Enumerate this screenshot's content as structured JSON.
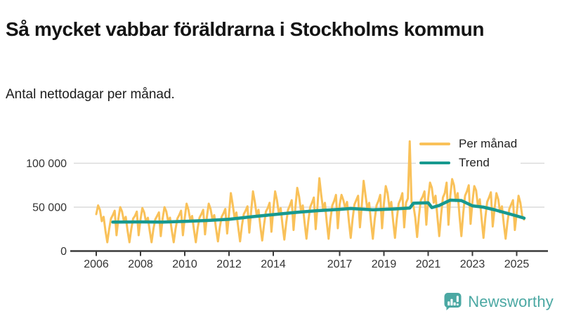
{
  "header": {
    "title": "Så mycket vabbar föräldrarna i Stockholms kommun",
    "subtitle": "Antal nettodagar per månad."
  },
  "legend": {
    "items": [
      {
        "label": "Per månad",
        "color": "#F9C159"
      },
      {
        "label": "Trend",
        "color": "#17998F"
      }
    ]
  },
  "footer": {
    "brand": "Newsworthy",
    "brand_color": "#4BA8A3",
    "logo_icon": "bar-chart-speech-bubble-icon"
  },
  "colors": {
    "per_month": "#F9C159",
    "trend": "#17998F",
    "grid": "#DCDCDC",
    "axis": "#3A3A3A",
    "tick_text": "#333333",
    "brand": "#4BA8A3"
  },
  "chart_data": {
    "type": "line",
    "title": "Så mycket vabbar föräldrarna i Stockholms kommun",
    "subtitle": "Antal nettodagar per månad.",
    "ylabel": "Antal nettodagar",
    "x_unit": "month",
    "x_start": "2006-01",
    "x_end": "2025-05",
    "x_ticks": [
      2006,
      2008,
      2010,
      2012,
      2014,
      2017,
      2019,
      2021,
      2023,
      2025
    ],
    "y_ticks": [
      {
        "value": 0,
        "label": "0"
      },
      {
        "value": 50000,
        "label": "50 000"
      },
      {
        "value": 100000,
        "label": "100 000"
      }
    ],
    "ylim": [
      0,
      130000
    ],
    "grid": "horizontal",
    "legend_position": "top-right",
    "series": [
      {
        "name": "Per månad",
        "color": "#F9C159",
        "kind": "monthly-values",
        "values": [
          42000,
          52000,
          47000,
          34000,
          39000,
          23000,
          10000,
          25000,
          37000,
          41000,
          46000,
          18000,
          37000,
          50000,
          45000,
          34000,
          39000,
          23000,
          10000,
          25000,
          37000,
          40000,
          45000,
          18000,
          36000,
          49000,
          44000,
          33000,
          38000,
          23000,
          10000,
          25000,
          36000,
          40000,
          44000,
          17000,
          37000,
          50000,
          45000,
          34000,
          38000,
          23000,
          10000,
          25000,
          37000,
          41000,
          46000,
          18000,
          38000,
          54000,
          47000,
          35000,
          40000,
          24000,
          10000,
          26000,
          38000,
          42000,
          47000,
          19000,
          39000,
          54000,
          48000,
          36000,
          41000,
          25000,
          11000,
          27000,
          39000,
          43000,
          48000,
          20000,
          42000,
          66000,
          53000,
          38000,
          44000,
          27000,
          11000,
          29000,
          42000,
          46000,
          51000,
          21000,
          45000,
          68000,
          56000,
          41000,
          47000,
          28000,
          12000,
          30000,
          45000,
          49000,
          55000,
          22000,
          47000,
          68000,
          58000,
          43000,
          49000,
          30000,
          13000,
          32000,
          47000,
          52000,
          58000,
          24000,
          50000,
          72000,
          62000,
          46000,
          52000,
          32000,
          14000,
          34000,
          50000,
          55000,
          61000,
          25000,
          52000,
          83000,
          64000,
          48000,
          55000,
          33000,
          14000,
          36000,
          52000,
          57000,
          64000,
          26000,
          53000,
          64000,
          58000,
          49000,
          56000,
          34000,
          15000,
          36000,
          53000,
          58000,
          63000,
          27000,
          52000,
          80000,
          64000,
          48000,
          55000,
          33000,
          14000,
          36000,
          52000,
          57000,
          64000,
          26000,
          54000,
          74000,
          66000,
          49000,
          56000,
          34000,
          15000,
          37000,
          54000,
          59000,
          66000,
          27000,
          55000,
          60000,
          125000,
          55000,
          52000,
          38000,
          16000,
          40000,
          58000,
          62000,
          68000,
          30000,
          60000,
          78000,
          72000,
          55000,
          63000,
          39000,
          17000,
          41000,
          61000,
          66000,
          78000,
          30000,
          63000,
          82000,
          75000,
          57000,
          66000,
          40000,
          17000,
          43000,
          63000,
          68000,
          75000,
          31000,
          56000,
          74000,
          69000,
          51000,
          59000,
          36000,
          15000,
          38000,
          56000,
          61000,
          67000,
          28000,
          48000,
          66000,
          59000,
          44000,
          51000,
          31000,
          14000,
          33000,
          48000,
          53000,
          58000,
          24000,
          43000,
          63000,
          55000,
          40000,
          36000
        ]
      },
      {
        "name": "Trend",
        "color": "#17998F",
        "kind": "anchor-points",
        "points": [
          [
            9,
            33000
          ],
          [
            24,
            33200
          ],
          [
            36,
            33000
          ],
          [
            48,
            33800
          ],
          [
            60,
            34800
          ],
          [
            72,
            36200
          ],
          [
            84,
            39000
          ],
          [
            96,
            41500
          ],
          [
            108,
            44000
          ],
          [
            120,
            46000
          ],
          [
            132,
            47500
          ],
          [
            138,
            48500
          ],
          [
            150,
            47000
          ],
          [
            162,
            48000
          ],
          [
            170,
            49000
          ],
          [
            172,
            54500
          ],
          [
            180,
            55000
          ],
          [
            182,
            49500
          ],
          [
            186,
            52000
          ],
          [
            192,
            58000
          ],
          [
            198,
            57500
          ],
          [
            204,
            51500
          ],
          [
            210,
            50000
          ],
          [
            216,
            47000
          ],
          [
            222,
            43500
          ],
          [
            228,
            40000
          ],
          [
            232,
            37500
          ]
        ]
      }
    ]
  }
}
